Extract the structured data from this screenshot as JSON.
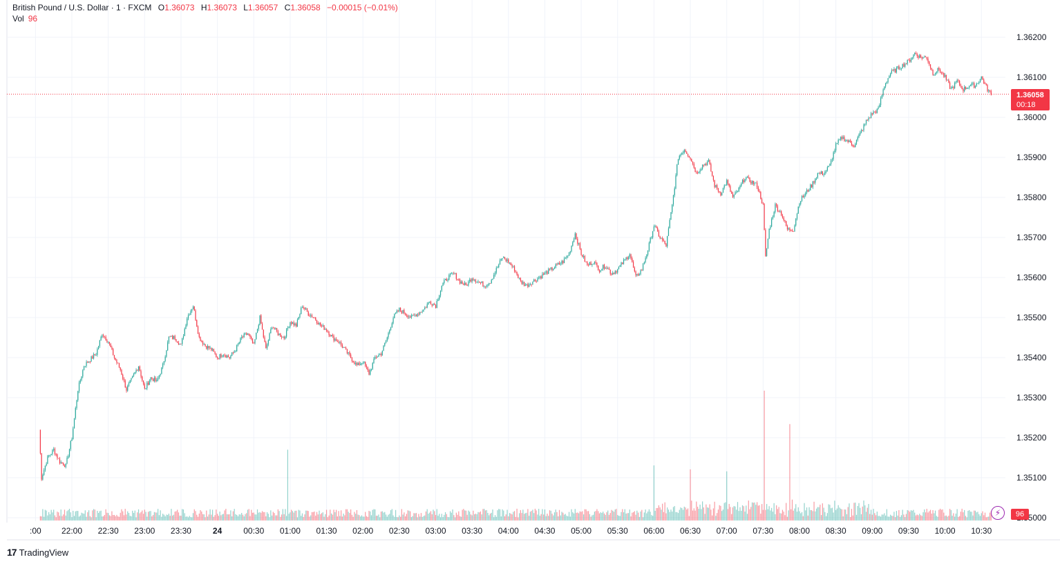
{
  "legend": {
    "symbol": "British Pound / U.S. Dollar · 1 · FXCM",
    "open_label": "O",
    "open": "1.36073",
    "high_label": "H",
    "high": "1.36073",
    "low_label": "L",
    "low": "1.36057",
    "close_label": "C",
    "close": "1.36058",
    "change": "−0.00015 (−0.01%)",
    "vol_label": "Vol",
    "vol": "96"
  },
  "price_tag": {
    "price": "1.36058",
    "countdown": "00:18"
  },
  "vol_tag": "96",
  "brand": {
    "logo": "17",
    "name": "TradingView"
  },
  "colors": {
    "up": "#26a69a",
    "down": "#f23645",
    "grid": "#f0f3fa",
    "text": "#131722"
  },
  "chart_data": {
    "type": "candlestick",
    "title": "",
    "y_ticks": [
      "1.35000",
      "1.35100",
      "1.35200",
      "1.35300",
      "1.35400",
      "1.35500",
      "1.35600",
      "1.35700",
      "1.35800",
      "1.35900",
      "1.36000",
      "1.36100",
      "1.36200"
    ],
    "x_ticks": [
      ":00",
      "22:00",
      "22:30",
      "23:00",
      "23:30",
      "24",
      "00:30",
      "01:00",
      "01:30",
      "02:00",
      "02:30",
      "03:00",
      "03:30",
      "04:00",
      "04:30",
      "05:00",
      "05:30",
      "06:00",
      "06:30",
      "07:00",
      "07:30",
      "08:00",
      "08:30",
      "09:00",
      "09:30",
      "10:00",
      "10:30"
    ],
    "ylim": [
      1.35,
      1.3626
    ],
    "last_price": 1.36058,
    "interval_minutes": 1,
    "price_path": [
      {
        "t": "21:33",
        "p": 1.3522
      },
      {
        "t": "21:35",
        "p": 1.351
      },
      {
        "t": "21:40",
        "p": 1.3515
      },
      {
        "t": "21:45",
        "p": 1.3517
      },
      {
        "t": "21:50",
        "p": 1.3514
      },
      {
        "t": "21:55",
        "p": 1.3513
      },
      {
        "t": "22:00",
        "p": 1.352
      },
      {
        "t": "22:05",
        "p": 1.3532
      },
      {
        "t": "22:10",
        "p": 1.3538
      },
      {
        "t": "22:20",
        "p": 1.3541
      },
      {
        "t": "22:25",
        "p": 1.3546
      },
      {
        "t": "22:30",
        "p": 1.3544
      },
      {
        "t": "22:35",
        "p": 1.354
      },
      {
        "t": "22:40",
        "p": 1.3537
      },
      {
        "t": "22:45",
        "p": 1.3532
      },
      {
        "t": "22:50",
        "p": 1.3535
      },
      {
        "t": "22:55",
        "p": 1.3538
      },
      {
        "t": "23:00",
        "p": 1.3532
      },
      {
        "t": "23:05",
        "p": 1.3535
      },
      {
        "t": "23:10",
        "p": 1.3534
      },
      {
        "t": "23:15",
        "p": 1.3538
      },
      {
        "t": "23:20",
        "p": 1.3545
      },
      {
        "t": "23:25",
        "p": 1.3545
      },
      {
        "t": "23:30",
        "p": 1.3543
      },
      {
        "t": "23:35",
        "p": 1.355
      },
      {
        "t": "23:40",
        "p": 1.3553
      },
      {
        "t": "23:45",
        "p": 1.3545
      },
      {
        "t": "23:50",
        "p": 1.3543
      },
      {
        "t": "23:55",
        "p": 1.3542
      },
      {
        "t": "00:00",
        "p": 1.354
      },
      {
        "t": "00:05",
        "p": 1.3541
      },
      {
        "t": "00:10",
        "p": 1.354
      },
      {
        "t": "00:15",
        "p": 1.3542
      },
      {
        "t": "00:20",
        "p": 1.3545
      },
      {
        "t": "00:25",
        "p": 1.3546
      },
      {
        "t": "00:30",
        "p": 1.3543
      },
      {
        "t": "00:35",
        "p": 1.355
      },
      {
        "t": "00:40",
        "p": 1.3542
      },
      {
        "t": "00:45",
        "p": 1.3548
      },
      {
        "t": "00:50",
        "p": 1.3546
      },
      {
        "t": "00:55",
        "p": 1.3545
      },
      {
        "t": "01:00",
        "p": 1.3549
      },
      {
        "t": "01:05",
        "p": 1.3548
      },
      {
        "t": "01:10",
        "p": 1.3553
      },
      {
        "t": "01:15",
        "p": 1.3551
      },
      {
        "t": "01:20",
        "p": 1.355
      },
      {
        "t": "01:25",
        "p": 1.3548
      },
      {
        "t": "01:30",
        "p": 1.3547
      },
      {
        "t": "01:35",
        "p": 1.3545
      },
      {
        "t": "01:40",
        "p": 1.3544
      },
      {
        "t": "01:45",
        "p": 1.3542
      },
      {
        "t": "01:50",
        "p": 1.354
      },
      {
        "t": "01:55",
        "p": 1.3538
      },
      {
        "t": "02:00",
        "p": 1.3539
      },
      {
        "t": "02:05",
        "p": 1.3536
      },
      {
        "t": "02:10",
        "p": 1.354
      },
      {
        "t": "02:15",
        "p": 1.3541
      },
      {
        "t": "02:20",
        "p": 1.3545
      },
      {
        "t": "02:25",
        "p": 1.355
      },
      {
        "t": "02:30",
        "p": 1.3552
      },
      {
        "t": "02:35",
        "p": 1.3551
      },
      {
        "t": "02:40",
        "p": 1.355
      },
      {
        "t": "02:45",
        "p": 1.3551
      },
      {
        "t": "02:50",
        "p": 1.3552
      },
      {
        "t": "02:55",
        "p": 1.3554
      },
      {
        "t": "03:00",
        "p": 1.3553
      },
      {
        "t": "03:05",
        "p": 1.3558
      },
      {
        "t": "03:10",
        "p": 1.356
      },
      {
        "t": "03:15",
        "p": 1.3561
      },
      {
        "t": "03:20",
        "p": 1.3559
      },
      {
        "t": "03:25",
        "p": 1.3558
      },
      {
        "t": "03:30",
        "p": 1.356
      },
      {
        "t": "03:35",
        "p": 1.3559
      },
      {
        "t": "03:40",
        "p": 1.3558
      },
      {
        "t": "03:45",
        "p": 1.3559
      },
      {
        "t": "03:50",
        "p": 1.3562
      },
      {
        "t": "03:55",
        "p": 1.3565
      },
      {
        "t": "04:00",
        "p": 1.3564
      },
      {
        "t": "04:05",
        "p": 1.3562
      },
      {
        "t": "04:10",
        "p": 1.3559
      },
      {
        "t": "04:15",
        "p": 1.3558
      },
      {
        "t": "04:20",
        "p": 1.3559
      },
      {
        "t": "04:25",
        "p": 1.356
      },
      {
        "t": "04:30",
        "p": 1.3561
      },
      {
        "t": "04:35",
        "p": 1.3562
      },
      {
        "t": "04:40",
        "p": 1.3563
      },
      {
        "t": "04:45",
        "p": 1.3564
      },
      {
        "t": "04:50",
        "p": 1.3566
      },
      {
        "t": "04:55",
        "p": 1.3571
      },
      {
        "t": "05:00",
        "p": 1.3566
      },
      {
        "t": "05:05",
        "p": 1.3563
      },
      {
        "t": "05:10",
        "p": 1.3564
      },
      {
        "t": "05:15",
        "p": 1.3562
      },
      {
        "t": "05:20",
        "p": 1.3563
      },
      {
        "t": "05:25",
        "p": 1.3561
      },
      {
        "t": "05:30",
        "p": 1.3562
      },
      {
        "t": "05:35",
        "p": 1.3564
      },
      {
        "t": "05:40",
        "p": 1.3566
      },
      {
        "t": "05:45",
        "p": 1.356
      },
      {
        "t": "05:50",
        "p": 1.3562
      },
      {
        "t": "05:55",
        "p": 1.3567
      },
      {
        "t": "06:00",
        "p": 1.3573
      },
      {
        "t": "06:05",
        "p": 1.357
      },
      {
        "t": "06:10",
        "p": 1.3568
      },
      {
        "t": "06:15",
        "p": 1.3578
      },
      {
        "t": "06:20",
        "p": 1.359
      },
      {
        "t": "06:25",
        "p": 1.3592
      },
      {
        "t": "06:30",
        "p": 1.359
      },
      {
        "t": "06:35",
        "p": 1.3586
      },
      {
        "t": "06:40",
        "p": 1.3588
      },
      {
        "t": "06:45",
        "p": 1.3589
      },
      {
        "t": "06:50",
        "p": 1.3583
      },
      {
        "t": "06:55",
        "p": 1.3581
      },
      {
        "t": "07:00",
        "p": 1.3584
      },
      {
        "t": "07:05",
        "p": 1.358
      },
      {
        "t": "07:10",
        "p": 1.3582
      },
      {
        "t": "07:15",
        "p": 1.3585
      },
      {
        "t": "07:20",
        "p": 1.3584
      },
      {
        "t": "07:25",
        "p": 1.3583
      },
      {
        "t": "07:30",
        "p": 1.3578
      },
      {
        "t": "07:32",
        "p": 1.3565
      },
      {
        "t": "07:35",
        "p": 1.3572
      },
      {
        "t": "07:40",
        "p": 1.3578
      },
      {
        "t": "07:45",
        "p": 1.3576
      },
      {
        "t": "07:50",
        "p": 1.3572
      },
      {
        "t": "07:55",
        "p": 1.3572
      },
      {
        "t": "08:00",
        "p": 1.3579
      },
      {
        "t": "08:05",
        "p": 1.3581
      },
      {
        "t": "08:10",
        "p": 1.3583
      },
      {
        "t": "08:15",
        "p": 1.3586
      },
      {
        "t": "08:20",
        "p": 1.3586
      },
      {
        "t": "08:25",
        "p": 1.3588
      },
      {
        "t": "08:30",
        "p": 1.3593
      },
      {
        "t": "08:35",
        "p": 1.3595
      },
      {
        "t": "08:40",
        "p": 1.3594
      },
      {
        "t": "08:45",
        "p": 1.3593
      },
      {
        "t": "08:50",
        "p": 1.3596
      },
      {
        "t": "08:55",
        "p": 1.3599
      },
      {
        "t": "09:00",
        "p": 1.3601
      },
      {
        "t": "09:05",
        "p": 1.3602
      },
      {
        "t": "09:10",
        "p": 1.3608
      },
      {
        "t": "09:15",
        "p": 1.3611
      },
      {
        "t": "09:20",
        "p": 1.3612
      },
      {
        "t": "09:25",
        "p": 1.3613
      },
      {
        "t": "09:30",
        "p": 1.3614
      },
      {
        "t": "09:35",
        "p": 1.3616
      },
      {
        "t": "09:40",
        "p": 1.3615
      },
      {
        "t": "09:45",
        "p": 1.3615
      },
      {
        "t": "09:50",
        "p": 1.3611
      },
      {
        "t": "09:55",
        "p": 1.3612
      },
      {
        "t": "10:00",
        "p": 1.361
      },
      {
        "t": "10:05",
        "p": 1.3607
      },
      {
        "t": "10:10",
        "p": 1.3609
      },
      {
        "t": "10:15",
        "p": 1.3607
      },
      {
        "t": "10:20",
        "p": 1.3608
      },
      {
        "t": "10:25",
        "p": 1.3608
      },
      {
        "t": "10:30",
        "p": 1.361
      },
      {
        "t": "10:35",
        "p": 1.3607
      },
      {
        "t": "10:38",
        "p": 1.36058
      }
    ],
    "volume_spikes": [
      {
        "t": "00:58",
        "v": 180
      },
      {
        "t": "06:00",
        "v": 140
      },
      {
        "t": "06:30",
        "v": 130
      },
      {
        "t": "07:00",
        "v": 125
      },
      {
        "t": "07:31",
        "v": 330
      },
      {
        "t": "07:52",
        "v": 245
      }
    ],
    "last_volume": 96
  }
}
